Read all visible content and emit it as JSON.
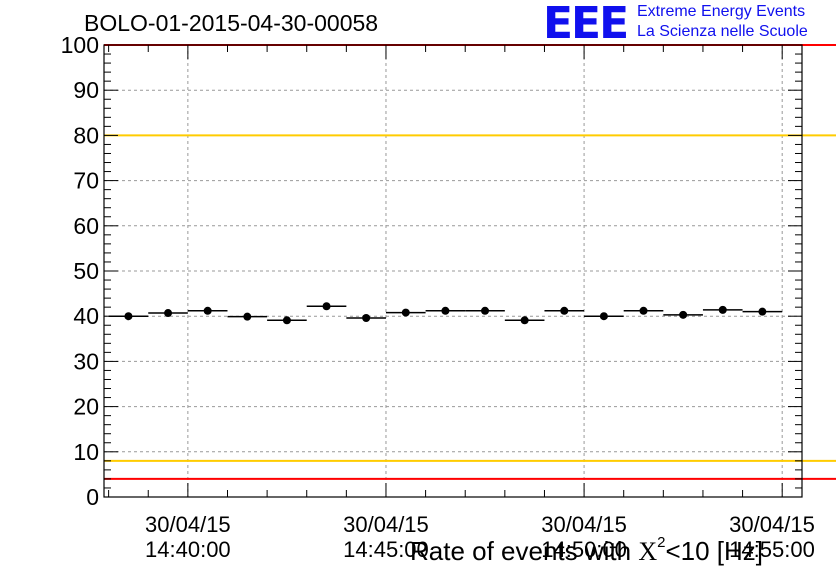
{
  "header": {
    "title": "BOLO-01-2015-04-30-00058",
    "logo_mark": "EEE",
    "logo_line1": "Extreme Energy Events",
    "logo_line2": "La Scienza nelle Scuole"
  },
  "chart_data": {
    "type": "scatter",
    "title": "BOLO-01-2015-04-30-00058",
    "xlabel_prefix": "Rate of events with ",
    "xlabel_chi": "X",
    "xlabel_sup": "2",
    "xlabel_suffix": "<10 [Hz]",
    "ylim": [
      0,
      100
    ],
    "yticks": [
      0,
      10,
      20,
      30,
      40,
      50,
      60,
      70,
      80,
      90,
      100
    ],
    "grid": true,
    "xticks": [
      {
        "date": "30/04/15",
        "time": "14:40:00"
      },
      {
        "date": "30/04/15",
        "time": "14:45:00"
      },
      {
        "date": "30/04/15",
        "time": "14:50:00"
      },
      {
        "date": "30/04/15",
        "time": "14:55:00"
      }
    ],
    "reference_lines": [
      {
        "y": 100,
        "color": "#ff0000"
      },
      {
        "y": 80,
        "color": "#ffcc00"
      },
      {
        "y": 8,
        "color": "#ffcc00"
      },
      {
        "y": 4,
        "color": "#ff0000"
      }
    ],
    "points": [
      {
        "x": "14:38:30",
        "y": 40.0
      },
      {
        "x": "14:39:30",
        "y": 40.7
      },
      {
        "x": "14:40:30",
        "y": 41.2
      },
      {
        "x": "14:41:30",
        "y": 39.9
      },
      {
        "x": "14:42:30",
        "y": 39.1
      },
      {
        "x": "14:43:30",
        "y": 42.2
      },
      {
        "x": "14:44:30",
        "y": 39.6
      },
      {
        "x": "14:45:30",
        "y": 40.8
      },
      {
        "x": "14:46:30",
        "y": 41.2
      },
      {
        "x": "14:47:30",
        "y": 41.2
      },
      {
        "x": "14:48:30",
        "y": 39.1
      },
      {
        "x": "14:49:30",
        "y": 41.2
      },
      {
        "x": "14:50:30",
        "y": 40.0
      },
      {
        "x": "14:51:30",
        "y": 41.2
      },
      {
        "x": "14:52:30",
        "y": 40.3
      },
      {
        "x": "14:53:30",
        "y": 41.4
      },
      {
        "x": "14:54:30",
        "y": 41.0
      }
    ],
    "colors": {
      "marker": "#000000",
      "grid": "#999999"
    }
  }
}
